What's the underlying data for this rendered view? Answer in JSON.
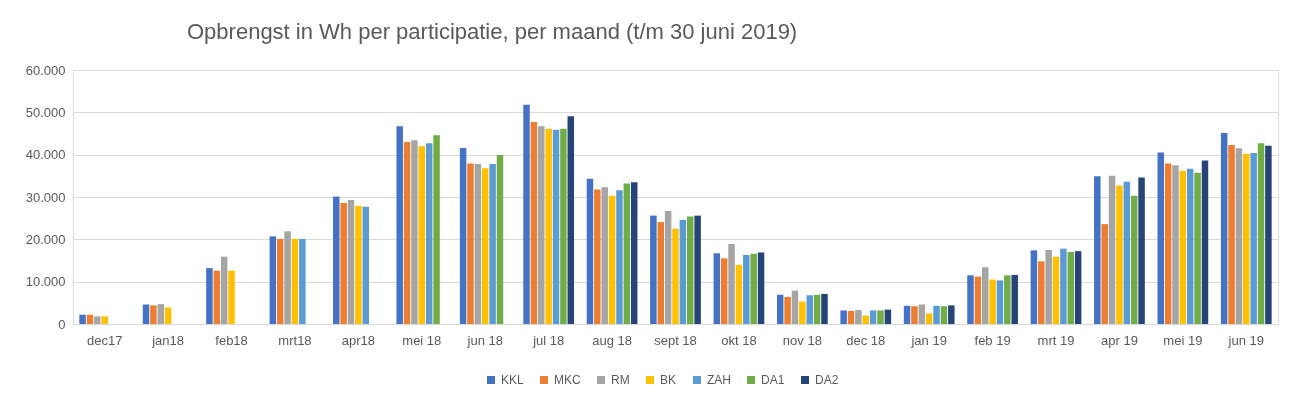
{
  "chart_data": {
    "type": "bar",
    "title": "Opbrengst in Wh per participatie, per maand (t/m 30 juni 2019)",
    "categories": [
      "dec17",
      "jan18",
      "feb18",
      "mrt18",
      "apr18",
      "mei 18",
      "jun 18",
      "jul 18",
      "aug 18",
      "sept 18",
      "okt 18",
      "nov 18",
      "dec 18",
      "jan 19",
      "feb 19",
      "mrt 19",
      "apr 19",
      "mei 19",
      "jun 19"
    ],
    "series": [
      {
        "name": "KKL",
        "color": "#4472c4",
        "values": [
          2200,
          4600,
          13200,
          20700,
          30100,
          46700,
          41600,
          51800,
          34300,
          25600,
          16700,
          6900,
          3200,
          4300,
          11500,
          17400,
          34900,
          40500,
          45100
        ]
      },
      {
        "name": "MKC",
        "color": "#ed7d31",
        "values": [
          2200,
          4400,
          12600,
          20100,
          28600,
          43000,
          37900,
          47700,
          31800,
          24100,
          15500,
          6400,
          3100,
          4200,
          11200,
          14800,
          23600,
          37900,
          42300
        ]
      },
      {
        "name": "RM",
        "color": "#a5a5a5",
        "values": [
          1800,
          4700,
          15900,
          21900,
          29300,
          43400,
          37800,
          46700,
          32300,
          26700,
          18900,
          7900,
          3300,
          4600,
          13400,
          17500,
          35000,
          37500,
          41500
        ]
      },
      {
        "name": "BK",
        "color": "#ffc000",
        "values": [
          1800,
          3900,
          12600,
          20100,
          27900,
          42000,
          36800,
          46100,
          30300,
          22500,
          14000,
          5300,
          2000,
          2500,
          10500,
          15900,
          32700,
          36200,
          40200
        ]
      },
      {
        "name": "ZAH",
        "color": "#5b9bd5",
        "values": [
          null,
          null,
          null,
          20100,
          27700,
          42700,
          37800,
          45900,
          31600,
          24600,
          16300,
          6800,
          3200,
          4300,
          10300,
          17800,
          33600,
          36700,
          40400
        ]
      },
      {
        "name": "DA1",
        "color": "#70ad47",
        "values": [
          null,
          null,
          null,
          null,
          null,
          44600,
          39900,
          46100,
          33200,
          25400,
          16600,
          6900,
          3200,
          4200,
          11500,
          17000,
          30300,
          35700,
          42700
        ]
      },
      {
        "name": "DA2",
        "color": "#264478",
        "values": [
          null,
          null,
          null,
          null,
          null,
          null,
          null,
          49100,
          33500,
          25600,
          16900,
          7100,
          3400,
          4400,
          11600,
          17200,
          34600,
          38600,
          42100
        ]
      }
    ],
    "ylim": [
      0,
      60000
    ],
    "yticks": [
      0,
      {
        "value": 10000,
        "label": "10.000"
      },
      {
        "value": 20000,
        "label": "20.000"
      },
      {
        "value": 30000,
        "label": "30.000"
      },
      {
        "value": 40000,
        "label": "40.000"
      },
      {
        "value": 50000,
        "label": "50.000"
      },
      {
        "value": 60000,
        "label": "60.000"
      }
    ],
    "grid": "y",
    "legend": "bottom"
  }
}
